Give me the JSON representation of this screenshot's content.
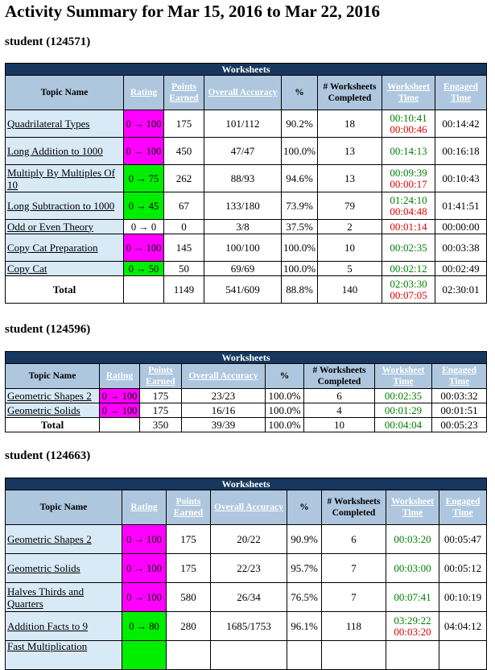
{
  "title": "Activity Summary for Mar 15, 2016 to Mar 22, 2016",
  "colors": {
    "header_dark": "#17375e",
    "header_light": "#aec7df",
    "topic_bg": "#d9eaf7",
    "rating_magenta": "#ff00ff",
    "rating_green": "#00ee00",
    "time_green": "#008000",
    "time_red": "#e00000"
  },
  "arrow": "→",
  "students": [
    {
      "label": "student (124571)",
      "section": "Worksheets",
      "columns": [
        "Topic Name",
        "Rating",
        "Points Earned",
        "Overall Accuracy",
        "%",
        "# Worksheets Completed",
        "Worksheet Time",
        "Engaged Time"
      ],
      "rows": [
        {
          "topic": "Quadrilateral Types",
          "rating": "0 → 100",
          "rating_color": "magenta",
          "points": "175",
          "accuracy": "101/112",
          "pct": "90.2%",
          "completed": "18",
          "wtime_green": "00:10:41",
          "wtime_red": "00:00:46",
          "engaged": "00:14:42"
        },
        {
          "topic": "Long Addition to 1000",
          "rating": "0 → 100",
          "rating_color": "magenta",
          "points": "450",
          "accuracy": "47/47",
          "pct": "100.0%",
          "completed": "13",
          "wtime_green": "00:14:13",
          "wtime_red": "",
          "engaged": "00:16:18"
        },
        {
          "topic": "Multiply By Multiples Of 10",
          "rating": "0 → 75",
          "rating_color": "green",
          "points": "262",
          "accuracy": "88/93",
          "pct": "94.6%",
          "completed": "13",
          "wtime_green": "00:09:39",
          "wtime_red": "00:00:17",
          "engaged": "00:10:43"
        },
        {
          "topic": "Long Subtraction to 1000",
          "rating": "0 → 45",
          "rating_color": "green",
          "points": "67",
          "accuracy": "133/180",
          "pct": "73.9%",
          "completed": "79",
          "wtime_green": "01:24:10",
          "wtime_red": "00:04:48",
          "engaged": "01:41:51"
        },
        {
          "topic": "Odd or Even Theory",
          "rating": "0 → 0",
          "rating_color": "plain",
          "points": "0",
          "accuracy": "3/8",
          "pct": "37.5%",
          "completed": "2",
          "wtime_green": "",
          "wtime_red": "00:01:14",
          "engaged": "00:00:00"
        },
        {
          "topic": "Copy Cat Preparation",
          "rating": "0 → 100",
          "rating_color": "magenta",
          "points": "145",
          "accuracy": "100/100",
          "pct": "100.0%",
          "completed": "10",
          "wtime_green": "00:02:35",
          "wtime_red": "",
          "engaged": "00:03:38"
        },
        {
          "topic": "Copy Cat",
          "rating": "0 → 50",
          "rating_color": "green",
          "points": "50",
          "accuracy": "69/69",
          "pct": "100.0%",
          "completed": "5",
          "wtime_green": "00:02:12",
          "wtime_red": "",
          "engaged": "00:02:49"
        }
      ],
      "total": {
        "label": "Total",
        "points": "1149",
        "accuracy": "541/609",
        "pct": "88.8%",
        "completed": "140",
        "wtime_green": "02:03:30",
        "wtime_red": "00:07:05",
        "engaged": "02:30:01"
      }
    },
    {
      "label": "student (124596)",
      "section": "Worksheets",
      "columns": [
        "Topic Name",
        "Rating",
        "Points Earned",
        "Overall Accuracy",
        "%",
        "# Worksheets Completed",
        "Worksheet Time",
        "Engaged Time"
      ],
      "rows": [
        {
          "topic": "Geometric Shapes 2",
          "rating": "0 → 100",
          "rating_color": "magenta",
          "points": "175",
          "accuracy": "23/23",
          "pct": "100.0%",
          "completed": "6",
          "wtime_green": "00:02:35",
          "wtime_red": "",
          "engaged": "00:03:32"
        },
        {
          "topic": "Geometric Solids",
          "rating": "0 → 100",
          "rating_color": "magenta",
          "points": "175",
          "accuracy": "16/16",
          "pct": "100.0%",
          "completed": "4",
          "wtime_green": "00:01:29",
          "wtime_red": "",
          "engaged": "00:01:51"
        }
      ],
      "total": {
        "label": "Total",
        "points": "350",
        "accuracy": "39/39",
        "pct": "100.0%",
        "completed": "10",
        "wtime_green": "00:04:04",
        "wtime_red": "",
        "engaged": "00:05:23"
      }
    },
    {
      "label": "student (124663)",
      "section": "Worksheets",
      "columns": [
        "Topic Name",
        "Rating",
        "Points Earned",
        "Overall Accuracy",
        "%",
        "# Worksheets Completed",
        "Worksheet Time",
        "Engaged Time"
      ],
      "rows": [
        {
          "topic": "Geometric Shapes 2",
          "rating": "0 → 100",
          "rating_color": "magenta",
          "points": "175",
          "accuracy": "20/22",
          "pct": "90.9%",
          "completed": "6",
          "wtime_green": "00:03:20",
          "wtime_red": "",
          "engaged": "00:05:47"
        },
        {
          "topic": "Geometric Solids",
          "rating": "0 → 100",
          "rating_color": "magenta",
          "points": "175",
          "accuracy": "22/23",
          "pct": "95.7%",
          "completed": "7",
          "wtime_green": "00:03:00",
          "wtime_red": "",
          "engaged": "00:05:12"
        },
        {
          "topic": "Halves Thirds and Quarters",
          "rating": "0 → 100",
          "rating_color": "magenta",
          "points": "580",
          "accuracy": "26/34",
          "pct": "76.5%",
          "completed": "7",
          "wtime_green": "00:07:41",
          "wtime_red": "",
          "engaged": "00:10:19"
        },
        {
          "topic": "Addition Facts to 9",
          "rating": "0 → 80",
          "rating_color": "green",
          "points": "280",
          "accuracy": "1685/1753",
          "pct": "96.1%",
          "completed": "118",
          "wtime_green": "03:29:22",
          "wtime_red": "00:03:20",
          "engaged": "04:04:12"
        },
        {
          "topic": "Fast Multiplication",
          "rating": "",
          "rating_color": "green",
          "points": "",
          "accuracy": "",
          "pct": "",
          "completed": "",
          "wtime_green": "",
          "wtime_red": "",
          "engaged": ""
        }
      ]
    }
  ]
}
